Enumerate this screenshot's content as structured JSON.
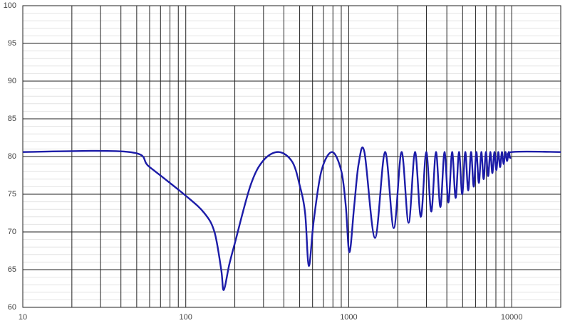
{
  "chart_data": {
    "type": "line",
    "log_x": true,
    "grid": true,
    "xlim": [
      10,
      20000
    ],
    "ylim": [
      60,
      100
    ],
    "xticks": [
      10,
      100,
      1000,
      10000
    ],
    "yticks": [
      60,
      65,
      70,
      75,
      80,
      85,
      90,
      95,
      100
    ],
    "series": [
      {
        "color": "#1c1ca8",
        "x": [
          10,
          45,
          60,
          100,
          130,
          150,
          165,
          171,
          185,
          200,
          250,
          300,
          372,
          450,
          500,
          540,
          569,
          610,
          680,
          790,
          900,
          960,
          1010,
          1080,
          1150,
          1248,
          1450,
          1670,
          1890,
          2110,
          2330,
          2550,
          2770,
          2990,
          3210,
          3430,
          3650,
          3870,
          4090,
          4310,
          4530,
          4750,
          4970,
          5190,
          5410,
          5630,
          5850,
          6070,
          6290,
          6510,
          6730,
          6950,
          7170,
          7390,
          7610,
          7830,
          8050,
          8270,
          8490,
          8710,
          8930,
          9150,
          9370,
          9590,
          9810,
          10030,
          20000
        ],
        "values": [
          80.6,
          80.6,
          78.6,
          74.8,
          72.5,
          70,
          65,
          62.3,
          65.7,
          68.5,
          76.2,
          79.5,
          80.6,
          79.3,
          76.2,
          72.5,
          65.5,
          71.5,
          78.1,
          80.6,
          78.1,
          73.4,
          67.3,
          73.4,
          79,
          80.6,
          69.2,
          80.6,
          70.5,
          80.6,
          71.2,
          80.6,
          72.0,
          80.6,
          72.7,
          80.6,
          73.3,
          80.6,
          73.9,
          80.6,
          74.5,
          80.6,
          75,
          80.6,
          75.5,
          80.6,
          76,
          80.6,
          76.5,
          80.6,
          77,
          80.6,
          77.4,
          80.6,
          77.8,
          80.6,
          78.2,
          80.6,
          78.6,
          80.6,
          79,
          80.6,
          79.4,
          80.6,
          79.8,
          80.6,
          80.6
        ]
      }
    ]
  }
}
